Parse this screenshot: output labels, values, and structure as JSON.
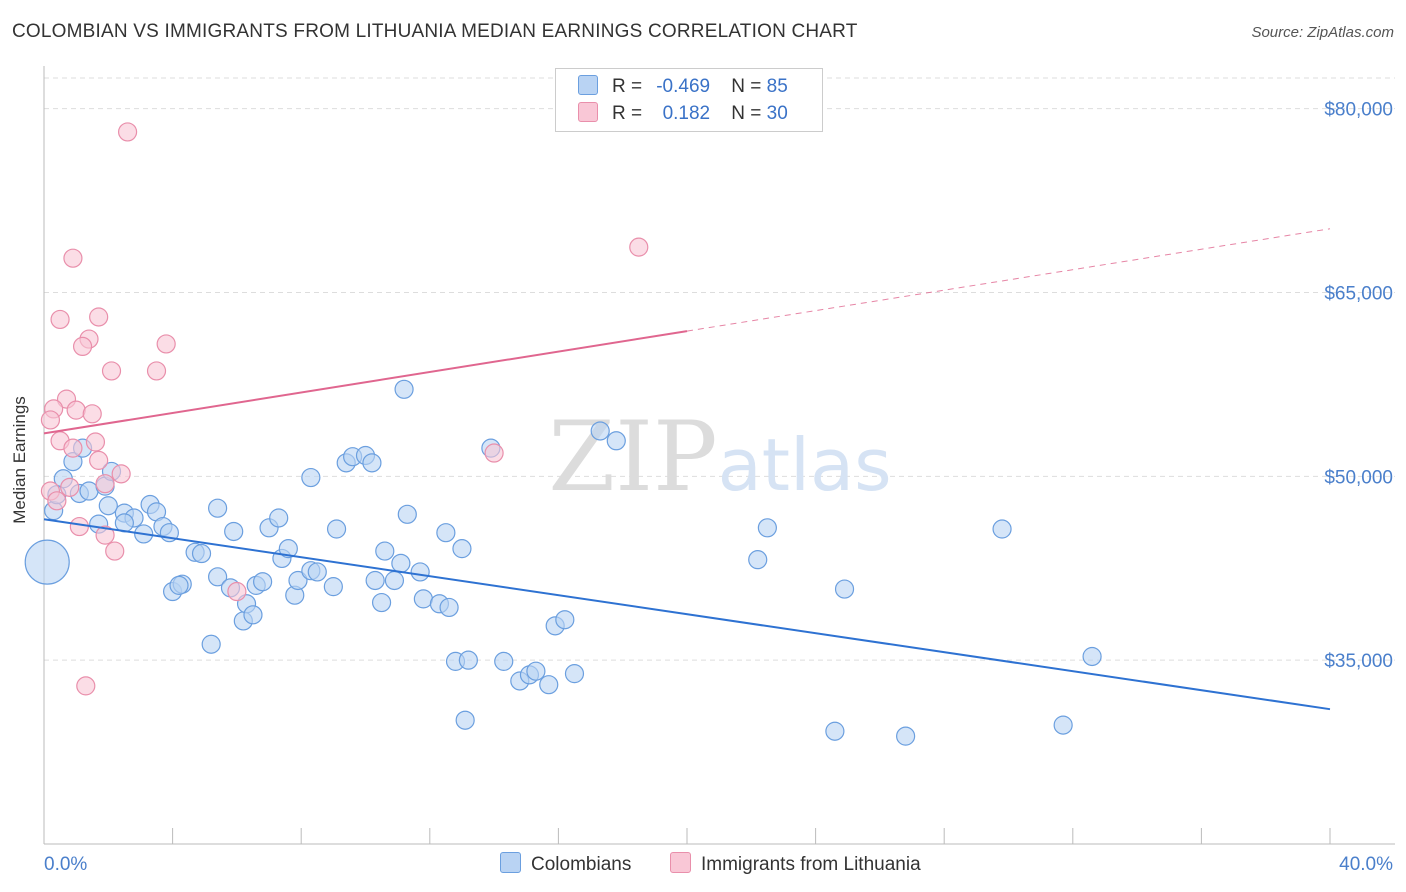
{
  "header": {
    "title": "COLOMBIAN VS IMMIGRANTS FROM LITHUANIA MEDIAN EARNINGS CORRELATION CHART",
    "source": "Source: ZipAtlas.com"
  },
  "legend": {
    "rows": [
      {
        "r_label": "R =",
        "r_value": "-0.469",
        "n_label": "N =",
        "n_value": "85"
      },
      {
        "r_label": "R =",
        "r_value": "0.182",
        "n_label": "N =",
        "n_value": "30"
      }
    ]
  },
  "colors": {
    "blue_fill": "#b9d3f3",
    "blue_stroke": "#6b9fdf",
    "blue_line": "#2e72d2",
    "pink_fill": "#f9c7d6",
    "pink_stroke": "#e98fab",
    "pink_line": "#e0668f",
    "axis_text": "#4a7fcb",
    "grid": "#dddddd"
  },
  "chart_data": {
    "type": "scatter",
    "title": "COLOMBIAN VS IMMIGRANTS FROM LITHUANIA MEDIAN EARNINGS CORRELATION CHART",
    "xlabel": "",
    "ylabel": "Median Earnings",
    "xlim": [
      0,
      40
    ],
    "ylim": [
      20000,
      82500
    ],
    "x_tick_labels": [
      "0.0%",
      "40.0%"
    ],
    "y_ticks": [
      35000,
      50000,
      65000,
      80000
    ],
    "y_tick_labels": [
      "$35,000",
      "$50,000",
      "$65,000",
      "$80,000"
    ],
    "grid": true,
    "legend_position": "top-center",
    "watermark": "ZIPatlas",
    "series": [
      {
        "name": "Colombians",
        "r": -0.469,
        "n": 85,
        "trend": {
          "x0": 0,
          "y0": 46500,
          "x1": 40,
          "y1": 31000
        },
        "points": [
          [
            0.3,
            47200
          ],
          [
            0.6,
            49800
          ],
          [
            0.9,
            51200
          ],
          [
            1.1,
            48600
          ],
          [
            1.4,
            48800
          ],
          [
            1.2,
            52300
          ],
          [
            0.4,
            48500
          ],
          [
            1.9,
            49200
          ],
          [
            2.1,
            50400
          ],
          [
            2.0,
            47600
          ],
          [
            2.5,
            47000
          ],
          [
            3.3,
            47700
          ],
          [
            2.8,
            46600
          ],
          [
            3.5,
            47100
          ],
          [
            2.5,
            46200
          ],
          [
            1.7,
            46100
          ],
          [
            3.1,
            45300
          ],
          [
            3.7,
            45900
          ],
          [
            3.9,
            45400
          ],
          [
            4.0,
            40600
          ],
          [
            4.3,
            41200
          ],
          [
            4.2,
            41100
          ],
          [
            4.7,
            43800
          ],
          [
            4.9,
            43700
          ],
          [
            5.2,
            36300
          ],
          [
            5.4,
            41800
          ],
          [
            5.8,
            40900
          ],
          [
            5.4,
            47400
          ],
          [
            5.9,
            45500
          ],
          [
            6.2,
            38200
          ],
          [
            6.3,
            39600
          ],
          [
            6.5,
            38700
          ],
          [
            6.6,
            41100
          ],
          [
            6.8,
            41400
          ],
          [
            7.0,
            45800
          ],
          [
            7.3,
            46600
          ],
          [
            7.4,
            43300
          ],
          [
            7.6,
            44100
          ],
          [
            7.8,
            40300
          ],
          [
            7.9,
            41500
          ],
          [
            8.3,
            42300
          ],
          [
            8.5,
            42200
          ],
          [
            8.3,
            49900
          ],
          [
            9.0,
            41000
          ],
          [
            9.1,
            45700
          ],
          [
            9.4,
            51100
          ],
          [
            9.6,
            51600
          ],
          [
            10.0,
            51700
          ],
          [
            10.2,
            51100
          ],
          [
            10.5,
            39700
          ],
          [
            10.6,
            43900
          ],
          [
            10.3,
            41500
          ],
          [
            10.9,
            41500
          ],
          [
            11.1,
            42900
          ],
          [
            11.3,
            46900
          ],
          [
            11.2,
            57100
          ],
          [
            11.7,
            42200
          ],
          [
            11.8,
            40000
          ],
          [
            12.3,
            39600
          ],
          [
            12.5,
            45400
          ],
          [
            12.6,
            39300
          ],
          [
            12.8,
            34900
          ],
          [
            13.0,
            44100
          ],
          [
            13.2,
            35000
          ],
          [
            13.1,
            30100
          ],
          [
            13.9,
            52300
          ],
          [
            14.3,
            34900
          ],
          [
            14.8,
            33300
          ],
          [
            15.1,
            33800
          ],
          [
            15.3,
            34100
          ],
          [
            15.7,
            33000
          ],
          [
            15.9,
            37800
          ],
          [
            16.2,
            38300
          ],
          [
            16.5,
            33900
          ],
          [
            17.3,
            53700
          ],
          [
            17.8,
            52900
          ],
          [
            22.2,
            43200
          ],
          [
            22.5,
            45800
          ],
          [
            24.6,
            29200
          ],
          [
            24.9,
            40800
          ],
          [
            26.8,
            28800
          ],
          [
            29.8,
            45700
          ],
          [
            31.7,
            29700
          ],
          [
            32.6,
            35300
          ],
          [
            0.1,
            43000
          ]
        ],
        "large_points": [
          [
            0.1,
            43000
          ]
        ]
      },
      {
        "name": "Immigrants from Lithuania",
        "r": 0.182,
        "n": 30,
        "trend": {
          "x0": 0,
          "y0": 53500,
          "x1": 40,
          "y1": 70200,
          "solid_until_x": 20
        },
        "points": [
          [
            2.6,
            78100
          ],
          [
            0.9,
            67800
          ],
          [
            0.5,
            62800
          ],
          [
            1.7,
            63000
          ],
          [
            1.4,
            61200
          ],
          [
            1.2,
            60600
          ],
          [
            3.8,
            60800
          ],
          [
            2.1,
            58600
          ],
          [
            3.5,
            58600
          ],
          [
            0.7,
            56300
          ],
          [
            0.3,
            55500
          ],
          [
            1.0,
            55400
          ],
          [
            0.2,
            54600
          ],
          [
            1.5,
            55100
          ],
          [
            0.5,
            52900
          ],
          [
            1.6,
            52800
          ],
          [
            0.9,
            52300
          ],
          [
            1.7,
            51300
          ],
          [
            2.4,
            50200
          ],
          [
            0.8,
            49100
          ],
          [
            1.9,
            49400
          ],
          [
            0.2,
            48800
          ],
          [
            0.4,
            48000
          ],
          [
            1.1,
            45900
          ],
          [
            1.9,
            45200
          ],
          [
            2.2,
            43900
          ],
          [
            1.3,
            32900
          ],
          [
            6.0,
            40600
          ],
          [
            14.0,
            51900
          ],
          [
            18.5,
            68700
          ]
        ]
      }
    ]
  }
}
